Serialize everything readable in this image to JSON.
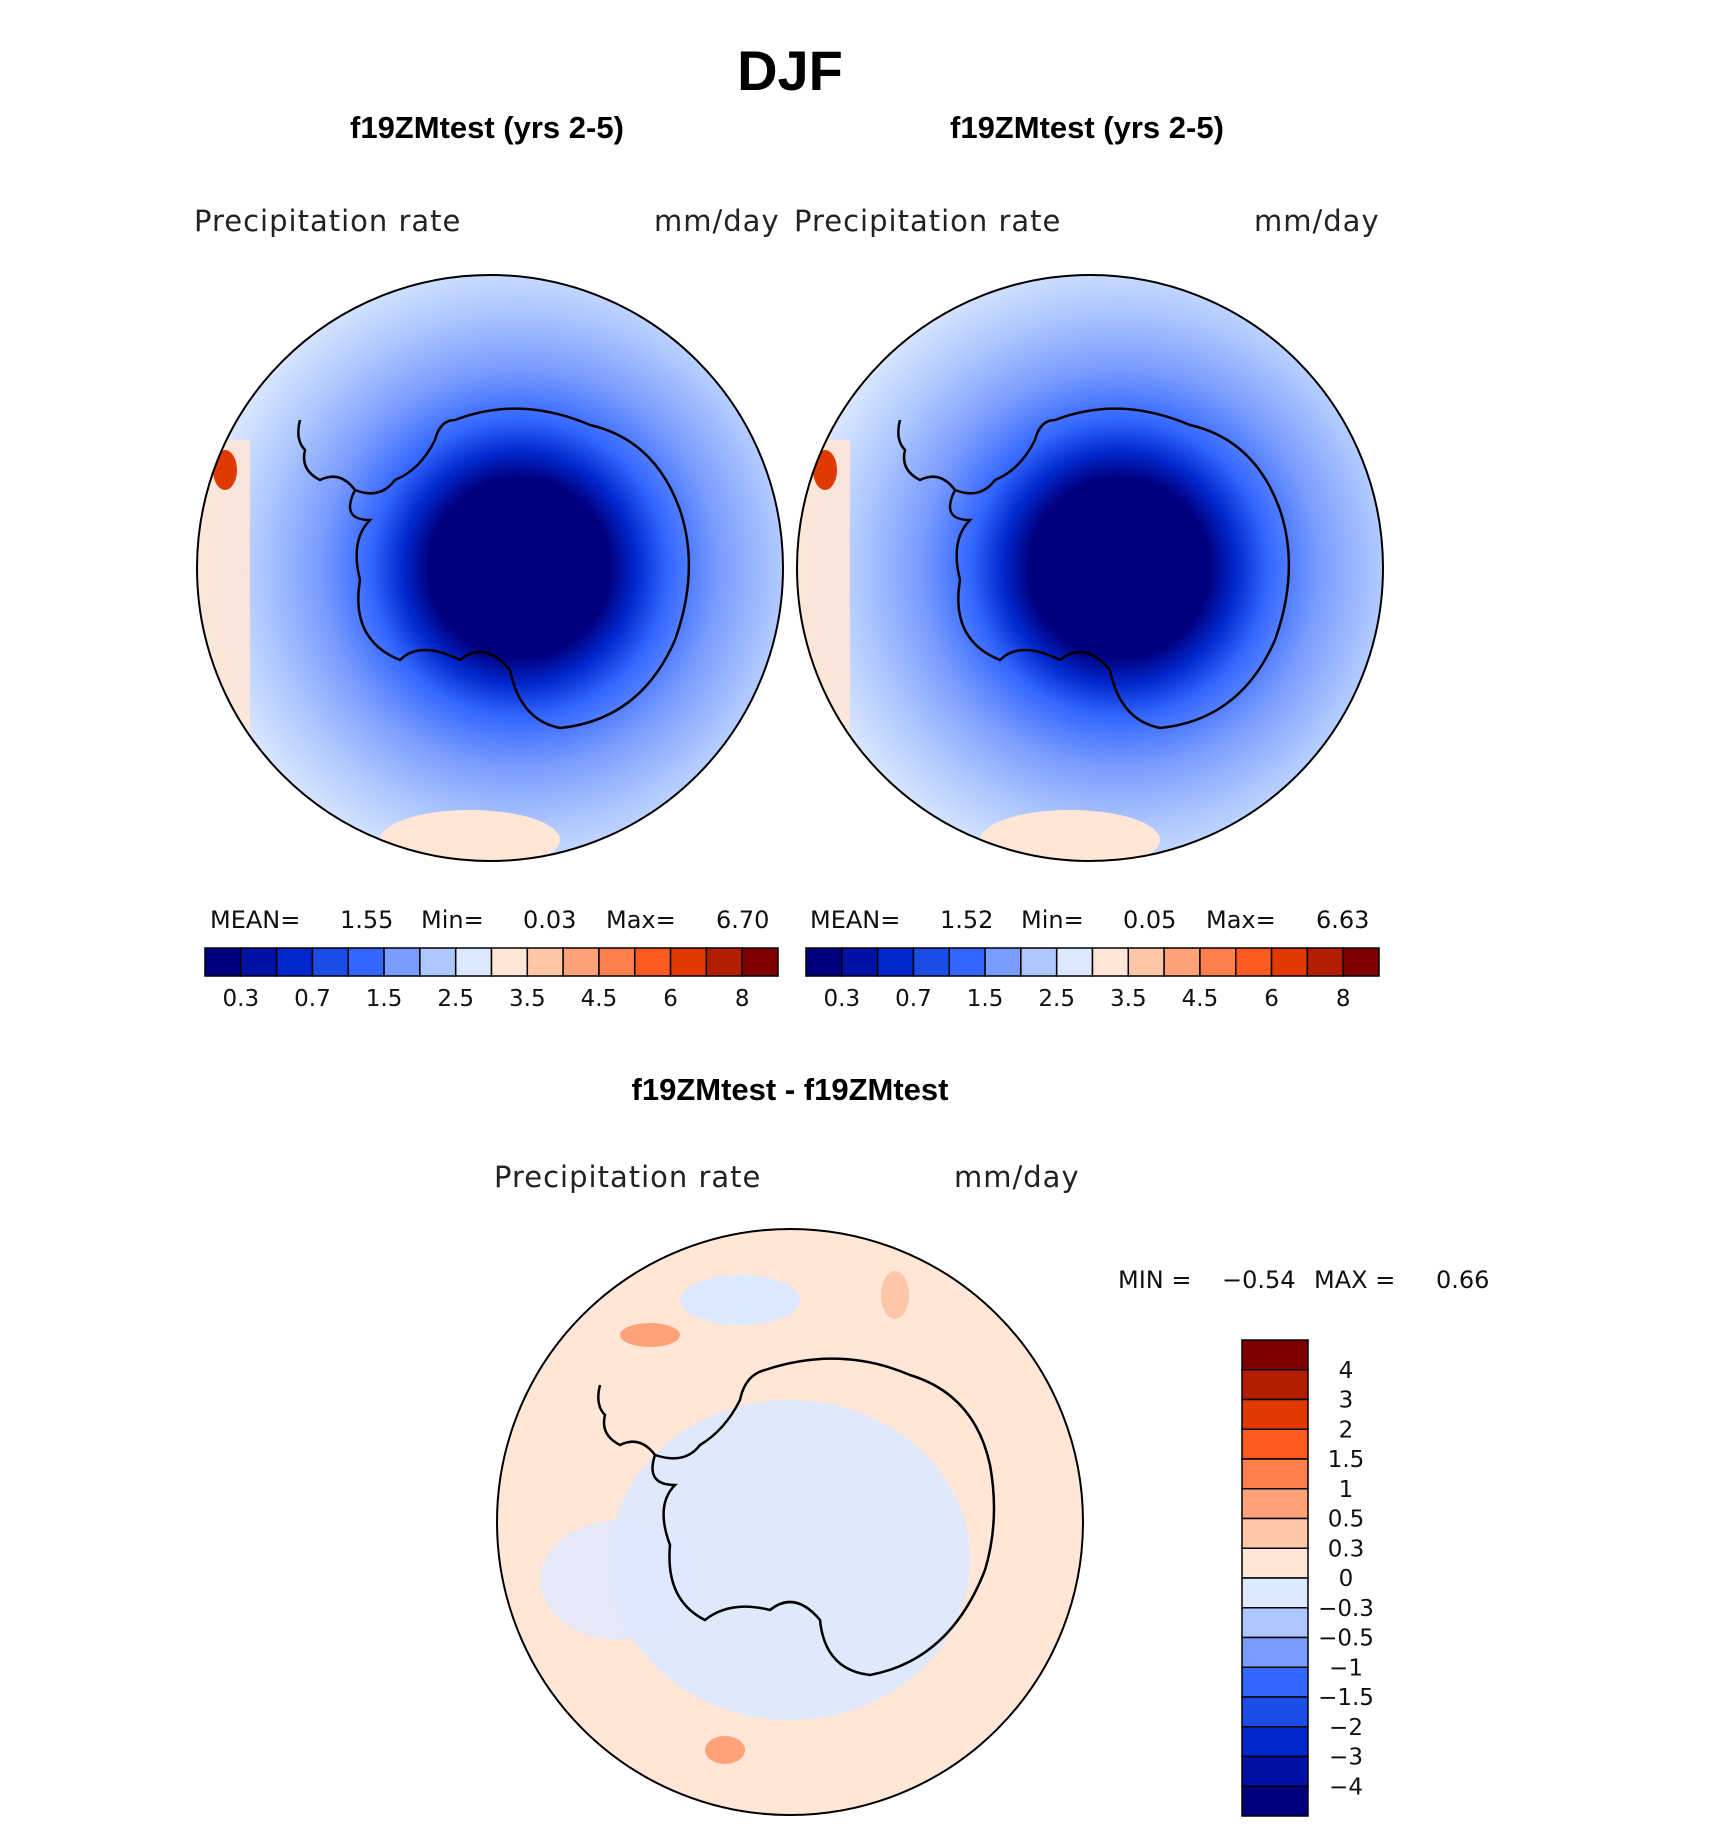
{
  "figure": {
    "title": "DJF"
  },
  "panels": [
    {
      "title": "f19ZMtest (yrs 2-5)",
      "variable": "Precipitation rate",
      "units": "mm/day",
      "stats": {
        "mean_label": "MEAN=",
        "mean": "1.55",
        "min_label": "Min=",
        "min": "0.03",
        "max_label": "Max=",
        "max": "6.70"
      }
    },
    {
      "title": "f19ZMtest (yrs 2-5)",
      "variable": "Precipitation rate",
      "units": "mm/day",
      "stats": {
        "mean_label": "MEAN=",
        "mean": "1.52",
        "min_label": "Min=",
        "min": "0.05",
        "max_label": "Max=",
        "max": "6.63"
      }
    }
  ],
  "abs_colorbar": {
    "colors": [
      "#00007f",
      "#0012a6",
      "#0027cc",
      "#1a4de6",
      "#3366ff",
      "#7a9cff",
      "#adc7ff",
      "#dde9ff",
      "#ffe6d6",
      "#ffc6a8",
      "#ffa27a",
      "#ff7f4f",
      "#ff5a1f",
      "#e03a00",
      "#b31e00",
      "#800000"
    ],
    "tick_labels": [
      "0.3",
      "0.7",
      "1.5",
      "2.5",
      "3.5",
      "4.5",
      "6",
      "8"
    ]
  },
  "difference": {
    "title": "f19ZMtest - f19ZMtest",
    "variable": "Precipitation rate",
    "units": "mm/day",
    "min_label": "MIN =",
    "min": "−0.54",
    "max_label": "MAX =",
    "max": "0.66",
    "colorbar": {
      "colors_top_to_bottom": [
        "#800000",
        "#b31e00",
        "#e03a00",
        "#ff5a1f",
        "#ff7f4f",
        "#ffa27a",
        "#ffc6a8",
        "#ffe6d6",
        "#dde9ff",
        "#adc7ff",
        "#7a9cff",
        "#3366ff",
        "#1a4de6",
        "#0027cc",
        "#0012a6",
        "#00007f"
      ],
      "tick_labels": [
        "4",
        "3",
        "2",
        "1.5",
        "1",
        "0.5",
        "0.3",
        "0",
        "−0.3",
        "−0.5",
        "−1",
        "−1.5",
        "−2",
        "−3",
        "−4"
      ]
    }
  }
}
